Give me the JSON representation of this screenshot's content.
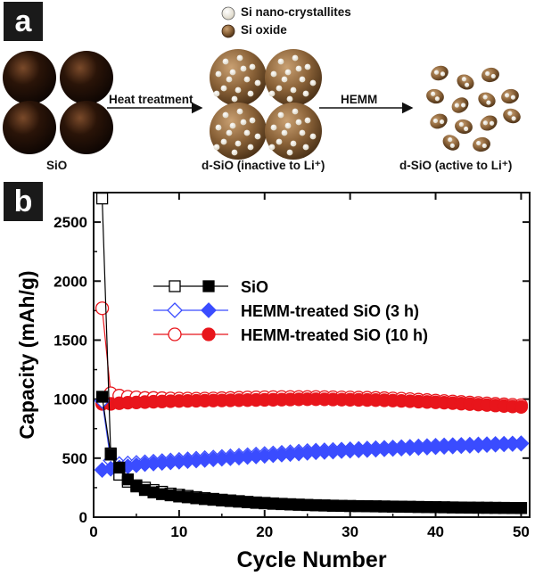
{
  "panel_a": {
    "label": "a",
    "legend_nano": "Si nano-crystallites",
    "legend_oxide": "Si oxide",
    "arrow1_label": "Heat treatment",
    "arrow2_label": "HEMM",
    "stage1_caption": "SiO",
    "stage2_caption": "d-SiO (inactive to Li⁺)",
    "stage3_caption": "d-SiO (active to Li⁺)",
    "colors": {
      "sphere_dark": "#2a1408",
      "sphere_brown": "#8a6238",
      "crystallite": "#f2eedf"
    }
  },
  "panel_b": {
    "label": "b"
  },
  "chart_data": {
    "type": "scatter",
    "xlabel": "Cycle Number",
    "ylabel": "Capacity (mAh/g)",
    "xlim": [
      0,
      51
    ],
    "ylim": [
      0,
      2750
    ],
    "xticks": [
      0,
      10,
      20,
      30,
      40,
      50
    ],
    "yticks": [
      0,
      500,
      1000,
      1500,
      2000,
      2500
    ],
    "legend_position": "upper-middle",
    "series": [
      {
        "name": "SiO",
        "color": "#000000",
        "marker": "square",
        "discharge": [
          2700,
          540,
          360,
          300,
          270,
          250,
          230,
          215,
          200,
          190,
          180,
          170,
          162,
          155,
          148,
          142,
          136,
          130,
          125,
          121,
          117,
          113,
          110,
          107,
          104,
          102,
          100,
          98,
          96,
          95,
          94,
          93,
          92,
          91,
          90,
          89,
          88,
          87,
          86,
          85,
          84,
          83,
          82,
          81,
          80,
          80,
          79,
          79,
          78,
          78
        ],
        "charge": [
          1020,
          530,
          420,
          320,
          260,
          230,
          210,
          195,
          185,
          175,
          168,
          160,
          153,
          147,
          141,
          136,
          131,
          126,
          121,
          117,
          113,
          110,
          107,
          104,
          102,
          100,
          98,
          96,
          95,
          94,
          93,
          92,
          91,
          90,
          89,
          88,
          87,
          86,
          85,
          84,
          83,
          82,
          81,
          80,
          80,
          79,
          79,
          78,
          78,
          77
        ]
      },
      {
        "name": "HEMM-treated SiO (3 h)",
        "color": "#3a4cff",
        "marker": "diamond",
        "discharge": [
          985,
          480,
          450,
          455,
          460,
          465,
          470,
          475,
          480,
          485,
          490,
          495,
          500,
          505,
          510,
          515,
          520,
          525,
          530,
          535,
          540,
          545,
          550,
          555,
          560,
          563,
          566,
          569,
          572,
          575,
          578,
          581,
          584,
          587,
          590,
          593,
          596,
          599,
          602,
          605,
          608,
          610,
          612,
          614,
          616,
          618,
          620,
          622,
          624,
          626
        ],
        "charge": [
          400,
          410,
          420,
          430,
          440,
          450,
          455,
          460,
          465,
          470,
          475,
          480,
          485,
          490,
          495,
          500,
          505,
          510,
          515,
          520,
          525,
          530,
          535,
          540,
          545,
          550,
          553,
          556,
          560,
          563,
          566,
          569,
          572,
          575,
          578,
          581,
          584,
          587,
          590,
          593,
          596,
          599,
          602,
          605,
          608,
          611,
          614,
          617,
          620,
          623
        ]
      },
      {
        "name": "HEMM-treated SiO (10 h)",
        "color": "#e8151b",
        "marker": "circle",
        "discharge": [
          1770,
          1050,
          1030,
          1020,
          1015,
          1010,
          1010,
          1008,
          1006,
          1005,
          1005,
          1004,
          1005,
          1006,
          1008,
          1010,
          1012,
          1014,
          1015,
          1016,
          1017,
          1018,
          1018,
          1018,
          1018,
          1018,
          1017,
          1016,
          1015,
          1014,
          1013,
          1012,
          1010,
          1008,
          1006,
          1004,
          1000,
          996,
          992,
          988,
          984,
          980,
          976,
          972,
          968,
          964,
          960,
          956,
          952,
          948
        ],
        "charge": [
          960,
          960,
          965,
          970,
          972,
          975,
          978,
          980,
          982,
          984,
          985,
          986,
          987,
          988,
          989,
          990,
          991,
          992,
          993,
          994,
          995,
          996,
          997,
          998,
          999,
          999,
          998,
          997,
          996,
          995,
          994,
          993,
          992,
          990,
          988,
          985,
          982,
          979,
          976,
          973,
          970,
          966,
          962,
          958,
          954,
          950,
          946,
          942,
          938,
          934
        ]
      }
    ]
  }
}
